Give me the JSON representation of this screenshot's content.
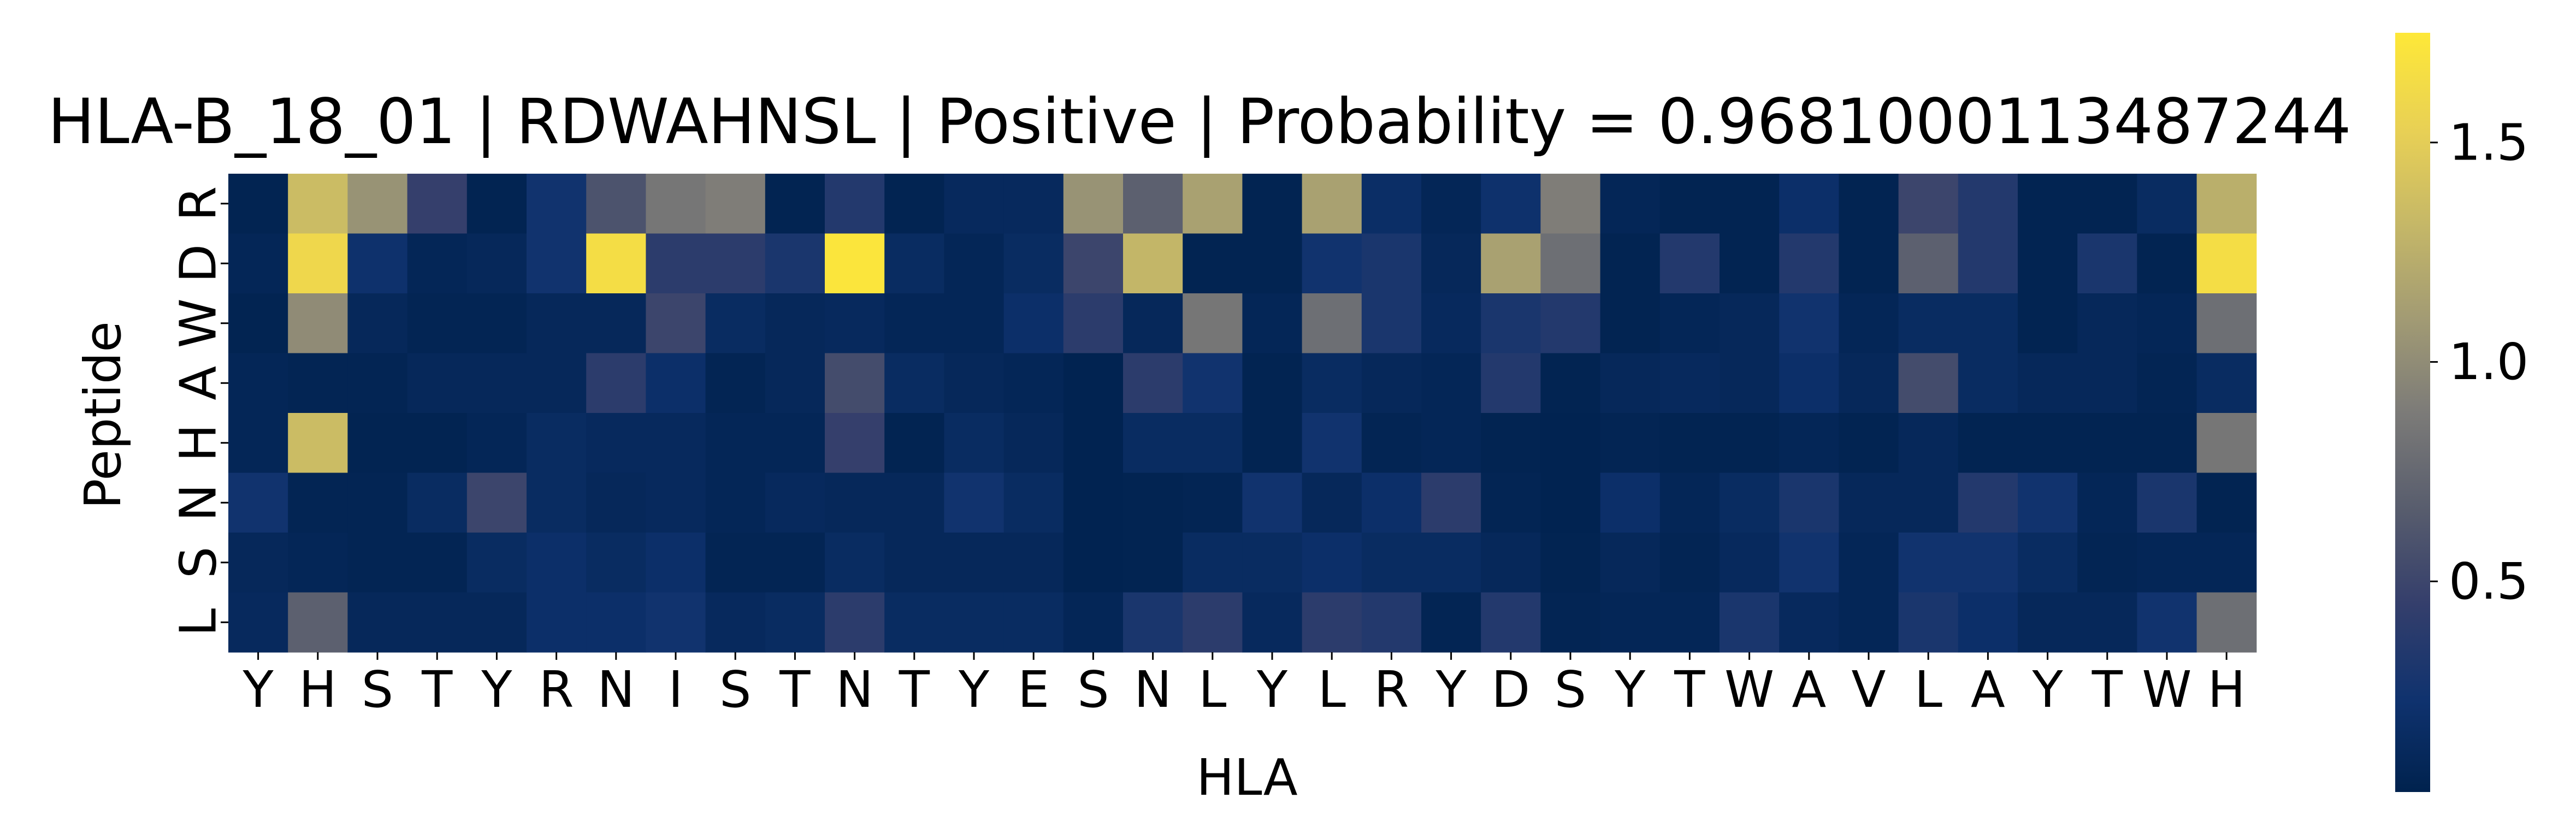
{
  "chart_data": {
    "type": "heatmap",
    "title": "HLA-B_18_01 | RDWAHNSL | Positive | Probability = 0.9681000113487244",
    "xlabel": "HLA",
    "ylabel": "Peptide",
    "x_tick_labels": [
      "Y",
      "H",
      "S",
      "T",
      "Y",
      "R",
      "N",
      "I",
      "S",
      "T",
      "N",
      "T",
      "Y",
      "E",
      "S",
      "N",
      "L",
      "Y",
      "L",
      "R",
      "Y",
      "D",
      "S",
      "Y",
      "T",
      "W",
      "A",
      "V",
      "L",
      "A",
      "Y",
      "T",
      "W",
      "H"
    ],
    "y_tick_labels": [
      "R",
      "D",
      "W",
      "A",
      "H",
      "N",
      "S",
      "L"
    ],
    "colormap": "cividis",
    "color_range": [
      0.02,
      1.75
    ],
    "colorbar_ticks": [
      0.5,
      1.0,
      1.5
    ],
    "colorbar_tick_labels": [
      "0.5",
      "1.0",
      "1.5"
    ],
    "values": [
      [
        0.05,
        1.35,
        1.05,
        0.45,
        0.05,
        0.25,
        0.6,
        0.85,
        0.9,
        0.05,
        0.35,
        0.05,
        0.12,
        0.12,
        1.05,
        0.7,
        1.15,
        0.05,
        1.15,
        0.18,
        0.08,
        0.22,
        0.9,
        0.08,
        0.05,
        0.05,
        0.2,
        0.05,
        0.5,
        0.35,
        0.05,
        0.05,
        0.15,
        1.25
      ],
      [
        0.08,
        1.6,
        0.22,
        0.08,
        0.1,
        0.25,
        1.65,
        0.4,
        0.4,
        0.3,
        1.72,
        0.15,
        0.08,
        0.15,
        0.5,
        1.3,
        0.05,
        0.05,
        0.25,
        0.3,
        0.1,
        1.15,
        0.8,
        0.05,
        0.35,
        0.05,
        0.35,
        0.05,
        0.7,
        0.35,
        0.05,
        0.3,
        0.05,
        1.65
      ],
      [
        0.05,
        1.0,
        0.1,
        0.06,
        0.06,
        0.1,
        0.1,
        0.5,
        0.15,
        0.1,
        0.12,
        0.08,
        0.08,
        0.2,
        0.4,
        0.1,
        0.85,
        0.08,
        0.8,
        0.3,
        0.12,
        0.3,
        0.35,
        0.05,
        0.08,
        0.1,
        0.25,
        0.08,
        0.15,
        0.15,
        0.05,
        0.1,
        0.08,
        0.8
      ],
      [
        0.08,
        0.06,
        0.06,
        0.1,
        0.1,
        0.1,
        0.4,
        0.2,
        0.06,
        0.1,
        0.55,
        0.15,
        0.1,
        0.08,
        0.04,
        0.4,
        0.25,
        0.05,
        0.15,
        0.1,
        0.08,
        0.35,
        0.05,
        0.1,
        0.12,
        0.1,
        0.2,
        0.1,
        0.55,
        0.15,
        0.1,
        0.1,
        0.06,
        0.15
      ],
      [
        0.08,
        1.35,
        0.05,
        0.05,
        0.08,
        0.15,
        0.12,
        0.12,
        0.08,
        0.08,
        0.45,
        0.05,
        0.15,
        0.1,
        0.04,
        0.15,
        0.15,
        0.05,
        0.25,
        0.06,
        0.08,
        0.05,
        0.04,
        0.06,
        0.05,
        0.05,
        0.08,
        0.05,
        0.1,
        0.05,
        0.05,
        0.05,
        0.05,
        0.85
      ],
      [
        0.25,
        0.06,
        0.06,
        0.15,
        0.5,
        0.15,
        0.1,
        0.12,
        0.08,
        0.12,
        0.1,
        0.1,
        0.25,
        0.15,
        0.04,
        0.05,
        0.06,
        0.25,
        0.1,
        0.2,
        0.4,
        0.06,
        0.04,
        0.2,
        0.08,
        0.15,
        0.3,
        0.1,
        0.1,
        0.35,
        0.25,
        0.08,
        0.3,
        0.05
      ],
      [
        0.1,
        0.08,
        0.06,
        0.06,
        0.15,
        0.2,
        0.15,
        0.2,
        0.06,
        0.06,
        0.15,
        0.1,
        0.1,
        0.1,
        0.04,
        0.05,
        0.15,
        0.15,
        0.2,
        0.15,
        0.15,
        0.1,
        0.05,
        0.1,
        0.06,
        0.12,
        0.25,
        0.08,
        0.25,
        0.25,
        0.15,
        0.06,
        0.08,
        0.08
      ],
      [
        0.12,
        0.7,
        0.1,
        0.1,
        0.1,
        0.2,
        0.2,
        0.25,
        0.12,
        0.15,
        0.4,
        0.15,
        0.15,
        0.15,
        0.08,
        0.3,
        0.4,
        0.12,
        0.4,
        0.35,
        0.06,
        0.35,
        0.06,
        0.08,
        0.08,
        0.3,
        0.12,
        0.08,
        0.3,
        0.2,
        0.1,
        0.1,
        0.25,
        0.8
      ]
    ]
  }
}
